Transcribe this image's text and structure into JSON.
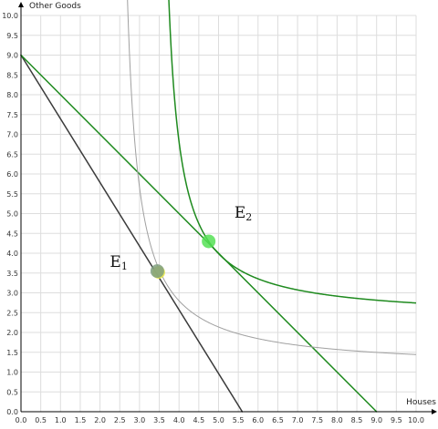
{
  "chart_data": {
    "type": "line",
    "xlabel": "Houses",
    "ylabel": "Other Goods",
    "xlim": [
      0,
      10
    ],
    "ylim": [
      0,
      10
    ],
    "xticks": [
      "0.0",
      "0.5",
      "1.0",
      "1.5",
      "2.0",
      "2.5",
      "3.0",
      "3.5",
      "4.0",
      "4.5",
      "5.0",
      "5.5",
      "6.0",
      "6.5",
      "7.0",
      "7.5",
      "8.0",
      "8.5",
      "9.0",
      "9.5",
      "10.0"
    ],
    "yticks": [
      "0.0",
      "0.5",
      "1.0",
      "1.5",
      "2.0",
      "2.5",
      "3.0",
      "3.5",
      "4.0",
      "4.5",
      "5.0",
      "5.5",
      "6.0",
      "6.5",
      "7.0",
      "7.5",
      "8.0",
      "8.5",
      "9.0",
      "9.5",
      "10.0"
    ],
    "grid": true,
    "colors": {
      "budget_1": "#3b3b3b",
      "budget_2": "#1e8a1e",
      "indifference_1": "#a0a0a0",
      "indifference_2": "#1e8a1e",
      "equilibrium_1": "#7f9f7f",
      "equilibrium_2": "#55e055",
      "grid": "#dddddd",
      "axis": "#000000"
    },
    "lines": [
      {
        "kind": "budget",
        "style": "budget_1",
        "x": [
          0,
          5.6
        ],
        "y": [
          9,
          0
        ]
      },
      {
        "kind": "budget",
        "style": "budget_2",
        "x": [
          0,
          9.0
        ],
        "y": [
          9,
          0
        ]
      },
      {
        "kind": "indifference",
        "style": "indifference_1",
        "asymptote_x": 2.4,
        "asymptote_y": 1.08,
        "k": 2.75,
        "x_from": 2.5,
        "x_to": 10.0
      },
      {
        "kind": "indifference",
        "style": "indifference_2",
        "asymptote_x": 3.42,
        "asymptote_y": 2.35,
        "k": 2.59,
        "x_from": 3.55,
        "x_to": 10.0
      }
    ],
    "points": [
      {
        "label": "E",
        "subscript": "1",
        "x": 3.45,
        "y": 3.55,
        "style": "equilibrium_1",
        "label_x": 2.25,
        "label_y": 3.65
      },
      {
        "label": "E",
        "subscript": "2",
        "x": 4.75,
        "y": 4.3,
        "style": "equilibrium_2",
        "label_x": 5.4,
        "label_y": 4.9
      }
    ]
  }
}
